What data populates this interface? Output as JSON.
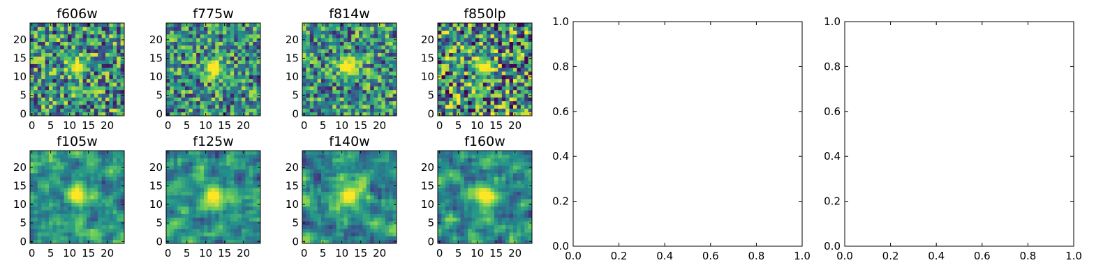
{
  "figure": {
    "image_panels": {
      "type": "heatmap",
      "colormap": "viridis",
      "grid_size": 25,
      "tick_labels": [
        "0",
        "5",
        "10",
        "15",
        "20"
      ],
      "xlim": [
        0,
        24
      ],
      "ylim": [
        0,
        24
      ],
      "panels": [
        {
          "title": "f606w"
        },
        {
          "title": "f775w"
        },
        {
          "title": "f814w"
        },
        {
          "title": "f850lp"
        },
        {
          "title": "f105w"
        },
        {
          "title": "f125w"
        },
        {
          "title": "f140w"
        },
        {
          "title": "f160w"
        }
      ]
    },
    "empty_axes": {
      "type": "line",
      "xlim": [
        0,
        1
      ],
      "ylim": [
        0,
        1
      ],
      "tick_labels": [
        "0.0",
        "0.2",
        "0.4",
        "0.6",
        "0.8",
        "1.0"
      ],
      "count": 2
    },
    "colors": {
      "viridis": [
        "#440154",
        "#3b528b",
        "#21918c",
        "#5ec962",
        "#fde725"
      ]
    }
  }
}
